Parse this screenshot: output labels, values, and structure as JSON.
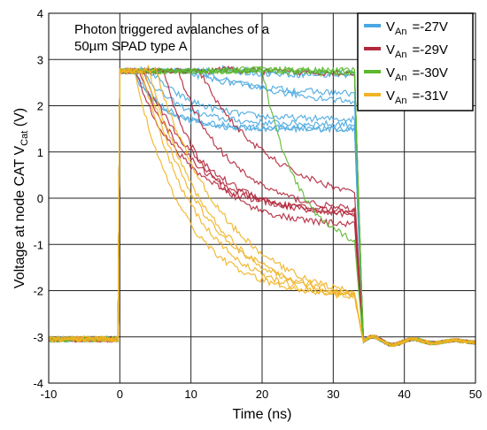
{
  "chart_data": {
    "type": "line",
    "title_lines": [
      "Photon triggered avalanches of a",
      "50µm SPAD type A"
    ],
    "xlabel": "Time  (ns)",
    "ylabel_main": "Voltage at node CAT V",
    "ylabel_sub": "Cat",
    "ylabel_unit": "  (V)",
    "xlim": [
      -10,
      50
    ],
    "ylim": [
      -4,
      4
    ],
    "x_ticks": [
      "-10",
      "0",
      "10",
      "20",
      "30",
      "40",
      "50"
    ],
    "y_ticks": [
      "-4",
      "-3",
      "-2",
      "-1",
      "0",
      "1",
      "2",
      "3",
      "4"
    ],
    "grid": true,
    "legend_position": "top-right",
    "legend_var": "V",
    "legend_sub": "An",
    "series": [
      {
        "name": "=-27V",
        "color": "#4aa8e0",
        "plateaus": [
          1.5,
          1.6,
          1.7,
          1.5,
          2.2,
          2.65,
          2.7,
          1.9
        ],
        "taus": [
          4,
          5,
          6,
          4.5,
          11,
          8,
          9,
          15
        ],
        "delays": [
          2,
          3,
          4,
          1.5,
          8,
          12,
          14,
          10
        ]
      },
      {
        "name": "=-29V",
        "color": "#b3283c",
        "plateaus": [
          -0.3,
          -0.4,
          -0.5,
          -0.6,
          -0.2,
          2.7,
          -0.35
        ],
        "taus": [
          7,
          8,
          9,
          6,
          10,
          9,
          7.5
        ],
        "delays": [
          2,
          2.5,
          3,
          6,
          11,
          13,
          8
        ]
      },
      {
        "name": "=-30V",
        "color": "#5cb82e",
        "plateaus": [
          -1.2,
          2.7,
          2.75,
          2.7
        ],
        "taus": [
          5,
          9,
          9,
          9
        ],
        "delays": [
          20,
          14,
          16,
          18
        ]
      },
      {
        "name": "=-31V",
        "color": "#f0b323",
        "plateaus": [
          -2.15,
          -2.25,
          -2.3,
          -2.35,
          -2.2
        ],
        "taus": [
          7,
          8,
          9,
          10,
          8.5
        ],
        "delays": [
          2,
          3,
          4,
          5,
          3.5
        ]
      }
    ],
    "shared": {
      "pulse_start_ns": 0,
      "pulse_peak_v": 2.8,
      "recharge_ns": 33,
      "settle_v": -3.1,
      "baseline_v": -3.05
    }
  }
}
